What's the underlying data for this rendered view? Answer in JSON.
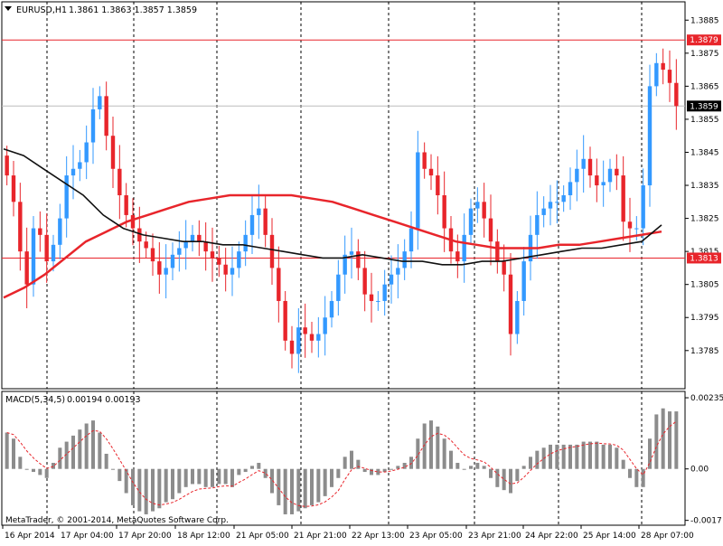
{
  "header": {
    "symbol_timeframe": "EURUSD,H1",
    "ohlc": "1.3861 1.3863 1.3857 1.3859"
  },
  "macd": {
    "label": "MACD(5,34,5)",
    "values": "0.00194 0.00193"
  },
  "copyright": "MetaTrader, © 2001-2014, MetaQuotes Software Corp.",
  "colors": {
    "up": "#3399ff",
    "down": "#e8252b",
    "ma_slow": "#e8252b",
    "ma_fast": "#111111",
    "level": "#e8252b",
    "current": "#bbbbbb",
    "hist": "#8c8c8c",
    "signal": "#e8252b",
    "grid": "#000000"
  },
  "chart_data": [
    {
      "type": "candlestick",
      "y_ticks": [
        "1.3885",
        "1.3875",
        "1.3865",
        "1.3855",
        "1.3845",
        "1.3835",
        "1.3825",
        "1.3815",
        "1.3805",
        "1.3795",
        "1.3785"
      ],
      "ylim": [
        1.3774,
        1.389
      ],
      "x_ticks": [
        "16 Apr 2014",
        "17 Apr 04:00",
        "17 Apr 20:00",
        "18 Apr 12:00",
        "21 Apr 05:00",
        "21 Apr 21:00",
        "22 Apr 13:00",
        "23 Apr 05:00",
        "23 Apr 21:00",
        "24 Apr 22:00",
        "25 Apr 14:00",
        "28 Apr 07:00"
      ],
      "price_labels": {
        "resistance": "1.3879",
        "current": "1.3859",
        "support": "1.3813"
      },
      "levels": {
        "resistance": 1.3879,
        "current": 1.3859,
        "support": 1.3813
      },
      "series": [
        {
          "kind": "close",
          "points": [
            1.3838,
            1.383,
            1.3815,
            1.3805,
            1.3822,
            1.382,
            1.3812,
            1.3817,
            1.3825,
            1.3838,
            1.384,
            1.3842,
            1.3848,
            1.3858,
            1.3862,
            1.385,
            1.384,
            1.3832,
            1.3826,
            1.3822,
            1.3818,
            1.3816,
            1.3812,
            1.3808,
            1.381,
            1.3814,
            1.3816,
            1.3818,
            1.382,
            1.3818,
            1.3815,
            1.3813,
            1.3811,
            1.3808,
            1.381,
            1.3815,
            1.382,
            1.3826,
            1.3828,
            1.382,
            1.381,
            1.38,
            1.3788,
            1.3784,
            1.3792,
            1.379,
            1.3788,
            1.379,
            1.3795,
            1.38,
            1.3808,
            1.3814,
            1.3815,
            1.381,
            1.3802,
            1.38,
            1.38,
            1.3805,
            1.3808,
            1.381,
            1.3815,
            1.3822,
            1.3845,
            1.384,
            1.3838,
            1.3832,
            1.3822,
            1.3815,
            1.3812,
            1.382,
            1.3828,
            1.383,
            1.3825,
            1.3818,
            1.3812,
            1.3808,
            1.379,
            1.38,
            1.3812,
            1.382,
            1.3826,
            1.3828,
            1.383,
            1.383,
            1.3832,
            1.3836,
            1.384,
            1.3843,
            1.3838,
            1.3835,
            1.3836,
            1.384,
            1.3838,
            1.3824,
            1.3822,
            1.3822,
            1.3835,
            1.3865,
            1.3872,
            1.387,
            1.3866,
            1.3859
          ]
        },
        {
          "kind": "ma_slow",
          "points": [
            1.3801,
            1.3804,
            1.3808,
            1.3813,
            1.3818,
            1.3821,
            1.3824,
            1.3826,
            1.3828,
            1.383,
            1.3831,
            1.3832,
            1.3832,
            1.3832,
            1.3832,
            1.3831,
            1.383,
            1.3828,
            1.3826,
            1.3824,
            1.3822,
            1.382,
            1.3818,
            1.3817,
            1.3816,
            1.3816,
            1.3816,
            1.3817,
            1.3817,
            1.3818,
            1.3819,
            1.382,
            1.3821
          ]
        },
        {
          "kind": "ma_fast",
          "points": [
            1.3846,
            1.3844,
            1.384,
            1.3836,
            1.3832,
            1.3826,
            1.3822,
            1.382,
            1.3819,
            1.3818,
            1.3818,
            1.3817,
            1.3817,
            1.3816,
            1.3815,
            1.3814,
            1.3813,
            1.3813,
            1.3814,
            1.3813,
            1.3812,
            1.3812,
            1.3811,
            1.3811,
            1.3812,
            1.3812,
            1.3813,
            1.3814,
            1.3815,
            1.3816,
            1.3816,
            1.3817,
            1.3818,
            1.3823
          ]
        }
      ]
    },
    {
      "type": "bar",
      "title": "MACD(5,34,5)",
      "y_ticks": [
        "0.00235",
        "0.00",
        "-0.0017"
      ],
      "ylim": [
        -0.0018,
        0.0025
      ],
      "values": [
        0.0012,
        0.001,
        0.0004,
        0.0,
        -0.0001,
        -0.0002,
        -0.0003,
        0.0002,
        0.0007,
        0.0009,
        0.0011,
        0.0013,
        0.0015,
        0.0016,
        0.0012,
        0.0005,
        0.0,
        -0.0004,
        -0.0008,
        -0.0012,
        -0.0014,
        -0.0015,
        -0.0014,
        -0.0013,
        -0.0011,
        -0.001,
        -0.0008,
        -0.0006,
        -0.0005,
        -0.0005,
        -0.0006,
        -0.0006,
        -0.0005,
        -0.0005,
        -0.0006,
        -0.0002,
        -0.0001,
        0.0001,
        0.0002,
        -0.0003,
        -0.0008,
        -0.0012,
        -0.0015,
        -0.0015,
        -0.0014,
        -0.0013,
        -0.0012,
        -0.0011,
        -0.0009,
        -0.0006,
        -0.0003,
        0.0004,
        0.0006,
        0.0003,
        -0.0001,
        -0.0002,
        -0.0002,
        -0.0001,
        0.0,
        0.0001,
        0.0002,
        0.0004,
        0.001,
        0.0015,
        0.0016,
        0.0014,
        0.001,
        0.0006,
        0.0002,
        0.0,
        0.0001,
        0.0002,
        0.0001,
        -0.0003,
        -0.0006,
        -0.0007,
        -0.0008,
        -0.0004,
        0.0001,
        0.0004,
        0.0006,
        0.0007,
        0.0008,
        0.0008,
        0.0008,
        0.0008,
        0.0008,
        0.0009,
        0.0009,
        0.0009,
        0.0008,
        0.0008,
        0.0007,
        0.0003,
        -0.0003,
        -0.0006,
        -0.0006,
        0.001,
        0.0018,
        0.002,
        0.0019,
        0.0019
      ]
    }
  ]
}
